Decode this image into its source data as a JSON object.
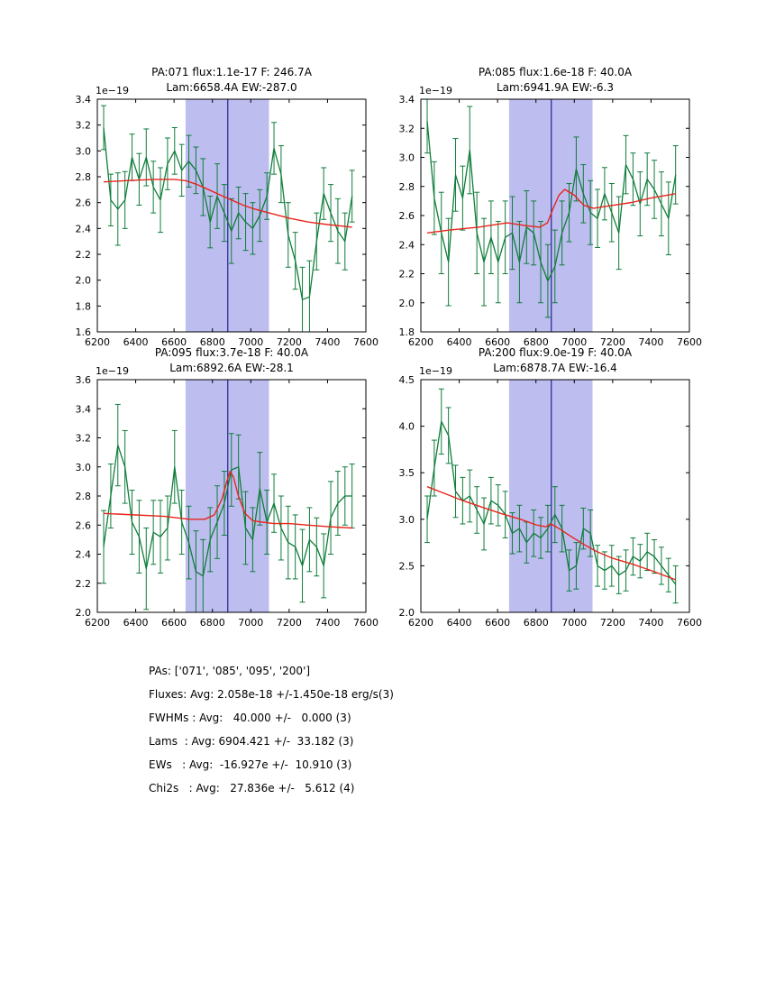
{
  "colors": {
    "data": "#0f7d3a",
    "fit": "#e8251c",
    "band": "#bdbdf0",
    "vline": "#232394",
    "frame": "#000000"
  },
  "stats": {
    "lines": [
      "PAs: ['071', '085', '095', '200']",
      "Fluxes: Avg: 2.058e-18 +/-1.450e-18 erg/s(3)",
      "FWHMs : Avg:   40.000 +/-   0.000 (3)",
      "Lams  : Avg: 6904.421 +/-  33.182 (3)",
      "EWs   : Avg:  -16.927e +/-  10.910 (3)",
      "Chi2s   : Avg:   27.836e +/-   5.612 (4)"
    ]
  },
  "chart_data": [
    {
      "type": "line",
      "title": [
        "PA:071 flux:1.1e-17 F: 246.7A",
        "Lam:6658.4A EW:-287.0"
      ],
      "y_offset_label": "1e−19",
      "xlabel": "",
      "ylabel": "",
      "xlim": [
        6200,
        7600
      ],
      "ylim": [
        1.6,
        3.4
      ],
      "xticks": [
        6200,
        6400,
        6600,
        6800,
        7000,
        7200,
        7400,
        7600
      ],
      "yticks": [
        1.6,
        1.8,
        2.0,
        2.2,
        2.4,
        2.6,
        2.8,
        3.0,
        3.2,
        3.4
      ],
      "band": [
        6660,
        7095
      ],
      "vline": 6880,
      "spectrum": {
        "x": [
          6233,
          6270,
          6307,
          6344,
          6381,
          6418,
          6455,
          6492,
          6529,
          6566,
          6603,
          6640,
          6677,
          6714,
          6751,
          6788,
          6825,
          6862,
          6899,
          6936,
          6973,
          7010,
          7047,
          7084,
          7121,
          7158,
          7195,
          7232,
          7269,
          7306,
          7343,
          7380,
          7417,
          7454,
          7491,
          7528
        ],
        "y": [
          3.18,
          2.62,
          2.55,
          2.62,
          2.95,
          2.78,
          2.95,
          2.72,
          2.62,
          2.9,
          3.0,
          2.85,
          2.92,
          2.85,
          2.72,
          2.45,
          2.65,
          2.52,
          2.38,
          2.52,
          2.45,
          2.4,
          2.5,
          2.65,
          3.02,
          2.82,
          2.35,
          2.15,
          1.85,
          1.87,
          2.3,
          2.67,
          2.52,
          2.38,
          2.3,
          2.65
        ],
        "yerr": [
          0.17,
          0.2,
          0.28,
          0.22,
          0.18,
          0.2,
          0.22,
          0.2,
          0.25,
          0.2,
          0.18,
          0.2,
          0.2,
          0.18,
          0.22,
          0.2,
          0.25,
          0.22,
          0.25,
          0.2,
          0.22,
          0.2,
          0.2,
          0.18,
          0.2,
          0.22,
          0.25,
          0.22,
          0.25,
          0.28,
          0.22,
          0.2,
          0.22,
          0.25,
          0.22,
          0.2
        ]
      },
      "fit": {
        "x": [
          6233,
          6350,
          6500,
          6600,
          6660,
          6720,
          6780,
          6840,
          6900,
          6960,
          7020,
          7095,
          7200,
          7300,
          7400,
          7528
        ],
        "y": [
          2.76,
          2.77,
          2.78,
          2.78,
          2.77,
          2.74,
          2.7,
          2.66,
          2.62,
          2.58,
          2.55,
          2.52,
          2.48,
          2.45,
          2.43,
          2.41
        ]
      }
    },
    {
      "type": "line",
      "title": [
        "PA:085 flux:1.6e-18 F: 40.0A",
        "Lam:6941.9A EW:-6.3"
      ],
      "y_offset_label": "1e−19",
      "xlabel": "",
      "ylabel": "",
      "xlim": [
        6200,
        7600
      ],
      "ylim": [
        1.8,
        3.4
      ],
      "xticks": [
        6200,
        6400,
        6600,
        6800,
        7000,
        7200,
        7400,
        7600
      ],
      "yticks": [
        1.8,
        2.0,
        2.2,
        2.4,
        2.6,
        2.8,
        3.0,
        3.2,
        3.4
      ],
      "band": [
        6660,
        7095
      ],
      "vline": 6880,
      "spectrum": {
        "x": [
          6233,
          6270,
          6307,
          6344,
          6381,
          6418,
          6455,
          6492,
          6529,
          6566,
          6603,
          6640,
          6677,
          6714,
          6751,
          6788,
          6825,
          6862,
          6899,
          6936,
          6973,
          7010,
          7047,
          7084,
          7121,
          7158,
          7195,
          7232,
          7269,
          7306,
          7343,
          7380,
          7417,
          7454,
          7491,
          7528
        ],
        "y": [
          3.25,
          2.72,
          2.48,
          2.28,
          2.88,
          2.72,
          3.05,
          2.48,
          2.28,
          2.45,
          2.28,
          2.45,
          2.48,
          2.28,
          2.52,
          2.48,
          2.28,
          2.15,
          2.25,
          2.48,
          2.62,
          2.92,
          2.75,
          2.62,
          2.58,
          2.75,
          2.62,
          2.48,
          2.95,
          2.85,
          2.68,
          2.85,
          2.78,
          2.68,
          2.58,
          2.88
        ],
        "yerr": [
          0.22,
          0.25,
          0.28,
          0.3,
          0.25,
          0.22,
          0.3,
          0.28,
          0.3,
          0.25,
          0.28,
          0.25,
          0.25,
          0.28,
          0.25,
          0.22,
          0.28,
          0.25,
          0.25,
          0.22,
          0.2,
          0.22,
          0.2,
          0.22,
          0.2,
          0.18,
          0.2,
          0.25,
          0.2,
          0.18,
          0.22,
          0.18,
          0.2,
          0.22,
          0.25,
          0.2
        ]
      },
      "fit": {
        "x": [
          6233,
          6350,
          6500,
          6650,
          6750,
          6820,
          6860,
          6890,
          6920,
          6950,
          7000,
          7050,
          7100,
          7200,
          7300,
          7400,
          7528
        ],
        "y": [
          2.48,
          2.5,
          2.52,
          2.55,
          2.53,
          2.52,
          2.55,
          2.65,
          2.74,
          2.78,
          2.74,
          2.67,
          2.65,
          2.67,
          2.69,
          2.72,
          2.75
        ]
      }
    },
    {
      "type": "line",
      "title": [
        "PA:095 flux:3.7e-18 F: 40.0A",
        "Lam:6892.6A EW:-28.1"
      ],
      "y_offset_label": "1e−19",
      "xlabel": "",
      "ylabel": "",
      "xlim": [
        6200,
        7600
      ],
      "ylim": [
        2.0,
        3.6
      ],
      "xticks": [
        6200,
        6400,
        6600,
        6800,
        7000,
        7200,
        7400,
        7600
      ],
      "yticks": [
        2.0,
        2.2,
        2.4,
        2.6,
        2.8,
        3.0,
        3.2,
        3.4,
        3.6
      ],
      "band": [
        6660,
        7095
      ],
      "vline": 6880,
      "spectrum": {
        "x": [
          6233,
          6270,
          6307,
          6344,
          6381,
          6418,
          6455,
          6492,
          6529,
          6566,
          6603,
          6640,
          6677,
          6714,
          6751,
          6788,
          6825,
          6862,
          6899,
          6936,
          6973,
          7010,
          7047,
          7084,
          7121,
          7158,
          7195,
          7232,
          7269,
          7306,
          7343,
          7380,
          7417,
          7454,
          7491,
          7528
        ],
        "y": [
          2.45,
          2.8,
          3.15,
          3.0,
          2.62,
          2.52,
          2.3,
          2.55,
          2.52,
          2.58,
          3.0,
          2.62,
          2.48,
          2.28,
          2.25,
          2.5,
          2.62,
          2.75,
          2.98,
          3.0,
          2.58,
          2.5,
          2.85,
          2.62,
          2.75,
          2.58,
          2.48,
          2.45,
          2.32,
          2.5,
          2.45,
          2.32,
          2.65,
          2.75,
          2.8,
          2.8
        ],
        "yerr": [
          0.25,
          0.22,
          0.28,
          0.25,
          0.22,
          0.25,
          0.28,
          0.22,
          0.25,
          0.22,
          0.25,
          0.22,
          0.25,
          0.28,
          0.25,
          0.22,
          0.25,
          0.22,
          0.25,
          0.22,
          0.25,
          0.22,
          0.25,
          0.22,
          0.2,
          0.22,
          0.25,
          0.22,
          0.25,
          0.22,
          0.2,
          0.22,
          0.25,
          0.22,
          0.2,
          0.22
        ]
      },
      "fit": {
        "x": [
          6233,
          6400,
          6550,
          6680,
          6760,
          6810,
          6850,
          6875,
          6892,
          6910,
          6935,
          6970,
          7010,
          7060,
          7120,
          7200,
          7300,
          7400,
          7528
        ],
        "y": [
          2.68,
          2.67,
          2.66,
          2.64,
          2.64,
          2.67,
          2.78,
          2.9,
          2.97,
          2.93,
          2.8,
          2.68,
          2.63,
          2.62,
          2.61,
          2.61,
          2.6,
          2.59,
          2.58
        ]
      }
    },
    {
      "type": "line",
      "title": [
        "PA:200 flux:9.0e-19 F: 40.0A",
        "Lam:6878.7A EW:-16.4"
      ],
      "y_offset_label": "1e−19",
      "xlabel": "",
      "ylabel": "",
      "xlim": [
        6200,
        7600
      ],
      "ylim": [
        2.0,
        4.5
      ],
      "xticks": [
        6200,
        6400,
        6600,
        6800,
        7000,
        7200,
        7400,
        7600
      ],
      "yticks": [
        2.0,
        2.5,
        3.0,
        3.5,
        4.0,
        4.5
      ],
      "band": [
        6660,
        7095
      ],
      "vline": 6880,
      "spectrum": {
        "x": [
          6233,
          6270,
          6307,
          6344,
          6381,
          6418,
          6455,
          6492,
          6529,
          6566,
          6603,
          6640,
          6677,
          6714,
          6751,
          6788,
          6825,
          6862,
          6899,
          6936,
          6973,
          7010,
          7047,
          7084,
          7121,
          7158,
          7195,
          7232,
          7269,
          7306,
          7343,
          7380,
          7417,
          7454,
          7491,
          7528
        ],
        "y": [
          3.0,
          3.55,
          4.05,
          3.9,
          3.3,
          3.2,
          3.25,
          3.1,
          2.95,
          3.2,
          3.15,
          3.05,
          2.85,
          2.9,
          2.75,
          2.85,
          2.8,
          2.9,
          3.05,
          2.9,
          2.45,
          2.5,
          2.9,
          2.85,
          2.5,
          2.45,
          2.5,
          2.4,
          2.45,
          2.6,
          2.55,
          2.65,
          2.6,
          2.5,
          2.4,
          2.3
        ],
        "yerr": [
          0.25,
          0.3,
          0.35,
          0.3,
          0.28,
          0.25,
          0.28,
          0.25,
          0.28,
          0.25,
          0.22,
          0.25,
          0.22,
          0.25,
          0.22,
          0.25,
          0.22,
          0.25,
          0.3,
          0.25,
          0.22,
          0.25,
          0.22,
          0.25,
          0.22,
          0.2,
          0.22,
          0.2,
          0.22,
          0.2,
          0.18,
          0.2,
          0.18,
          0.2,
          0.18,
          0.2
        ]
      },
      "fit": {
        "x": [
          6233,
          6320,
          6420,
          6520,
          6620,
          6720,
          6800,
          6850,
          6880,
          6920,
          6980,
          7050,
          7120,
          7200,
          7300,
          7400,
          7528
        ],
        "y": [
          3.35,
          3.28,
          3.2,
          3.13,
          3.06,
          3.0,
          2.94,
          2.92,
          2.95,
          2.9,
          2.82,
          2.73,
          2.65,
          2.58,
          2.52,
          2.45,
          2.35
        ]
      }
    }
  ]
}
